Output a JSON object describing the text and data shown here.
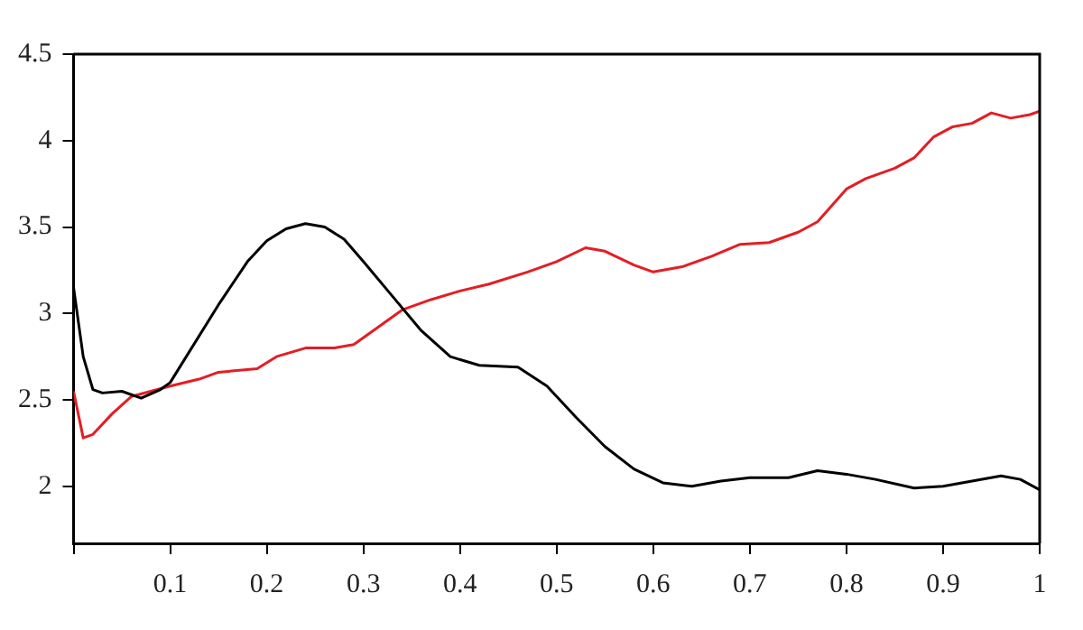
{
  "chart_data": {
    "type": "line",
    "xlim": [
      0,
      1
    ],
    "xticks": [
      {
        "value": 0,
        "label": null
      },
      0.1,
      0.2,
      0.3,
      0.4,
      0.5,
      0.6,
      0.7,
      0.8,
      0.9,
      1
    ],
    "ylim": [
      1.67,
      4.5
    ],
    "yticks": [
      2,
      2.5,
      3,
      3.5,
      4,
      4.5
    ],
    "grid": false,
    "legend": false,
    "marker": "none",
    "line_style": "solid",
    "series": [
      {
        "color": "#000000",
        "x": [
          0,
          0.01,
          0.02,
          0.03,
          0.05,
          0.07,
          0.09,
          0.1,
          0.12,
          0.15,
          0.18,
          0.2,
          0.22,
          0.24,
          0.26,
          0.28,
          0.3,
          0.33,
          0.36,
          0.39,
          0.42,
          0.46,
          0.49,
          0.52,
          0.55,
          0.58,
          0.61,
          0.64,
          0.67,
          0.7,
          0.74,
          0.77,
          0.8,
          0.83,
          0.87,
          0.9,
          0.93,
          0.96,
          0.98,
          1
        ],
        "values": [
          3.15,
          2.75,
          2.56,
          2.54,
          2.55,
          2.51,
          2.56,
          2.6,
          2.78,
          3.05,
          3.3,
          3.42,
          3.49,
          3.52,
          3.5,
          3.43,
          3.3,
          3.1,
          2.9,
          2.75,
          2.7,
          2.69,
          2.58,
          2.4,
          2.23,
          2.1,
          2.02,
          2,
          2.03,
          2.05,
          2.05,
          2.09,
          2.07,
          2.04,
          1.99,
          2,
          2.03,
          2.06,
          2.04,
          1.98
        ]
      },
      {
        "color": "#e31e24",
        "x": [
          0,
          0.01,
          0.02,
          0.04,
          0.06,
          0.08,
          0.1,
          0.13,
          0.15,
          0.19,
          0.21,
          0.24,
          0.27,
          0.29,
          0.31,
          0.34,
          0.37,
          0.4,
          0.43,
          0.47,
          0.5,
          0.53,
          0.55,
          0.58,
          0.6,
          0.63,
          0.66,
          0.69,
          0.72,
          0.75,
          0.77,
          0.8,
          0.82,
          0.85,
          0.87,
          0.89,
          0.91,
          0.93,
          0.95,
          0.97,
          0.99,
          1
        ],
        "values": [
          2.55,
          2.28,
          2.3,
          2.42,
          2.52,
          2.55,
          2.58,
          2.62,
          2.66,
          2.68,
          2.75,
          2.8,
          2.8,
          2.82,
          2.9,
          3.02,
          3.08,
          3.13,
          3.17,
          3.24,
          3.3,
          3.38,
          3.36,
          3.28,
          3.24,
          3.27,
          3.33,
          3.4,
          3.41,
          3.47,
          3.53,
          3.72,
          3.78,
          3.84,
          3.9,
          4.02,
          4.08,
          4.1,
          4.16,
          4.13,
          4.15,
          4.17
        ]
      }
    ]
  }
}
